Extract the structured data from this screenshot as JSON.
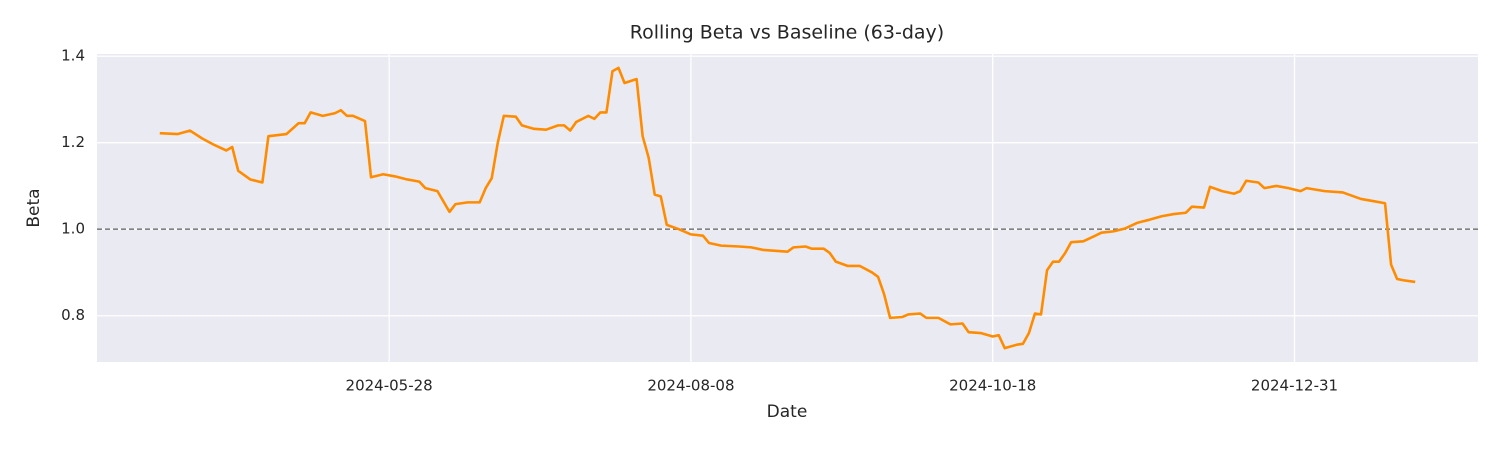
{
  "chart_data": {
    "type": "line",
    "title": "Rolling Beta vs Baseline (63-day)",
    "xlabel": "Date",
    "ylabel": "Beta",
    "x": [
      62,
      65,
      67,
      69,
      71,
      73,
      74,
      75,
      77,
      79,
      80,
      83,
      85,
      86,
      87,
      89,
      91,
      92,
      93,
      94,
      96,
      97,
      99,
      101,
      103,
      105,
      106,
      108,
      110,
      111,
      113,
      115,
      116,
      117,
      118,
      119,
      121,
      122,
      124,
      126,
      128,
      129,
      130,
      131,
      133,
      134,
      135,
      136,
      137,
      138,
      139,
      141,
      142,
      143,
      144,
      145,
      146,
      148,
      150,
      152,
      153,
      155,
      158,
      160,
      162,
      164,
      166,
      167,
      169,
      170,
      172,
      173,
      174,
      176,
      178,
      180,
      181,
      182,
      183,
      185,
      186,
      188,
      189,
      191,
      193,
      195,
      196,
      198,
      200,
      201,
      202,
      204,
      205,
      206,
      207,
      208,
      209,
      210,
      211,
      212,
      213,
      215,
      217,
      218,
      220,
      222,
      224,
      226,
      228,
      230,
      232,
      233,
      235,
      236,
      238,
      240,
      241,
      242,
      244,
      245,
      247,
      249,
      251,
      252,
      255,
      258,
      261,
      263,
      265,
      266,
      267,
      268,
      270
    ],
    "values": [
      1.222,
      1.22,
      1.228,
      1.21,
      1.195,
      1.182,
      1.19,
      1.135,
      1.115,
      1.108,
      1.215,
      1.22,
      1.245,
      1.245,
      1.27,
      1.262,
      1.268,
      1.275,
      1.262,
      1.262,
      1.25,
      1.12,
      1.127,
      1.122,
      1.115,
      1.11,
      1.095,
      1.088,
      1.04,
      1.058,
      1.062,
      1.062,
      1.095,
      1.118,
      1.2,
      1.262,
      1.26,
      1.24,
      1.232,
      1.23,
      1.24,
      1.24,
      1.228,
      1.248,
      1.262,
      1.255,
      1.27,
      1.27,
      1.365,
      1.373,
      1.338,
      1.347,
      1.215,
      1.165,
      1.08,
      1.076,
      1.01,
      1.0,
      0.988,
      0.985,
      0.968,
      0.962,
      0.96,
      0.958,
      0.952,
      0.95,
      0.948,
      0.958,
      0.96,
      0.955,
      0.955,
      0.945,
      0.925,
      0.915,
      0.915,
      0.9,
      0.89,
      0.85,
      0.795,
      0.797,
      0.803,
      0.805,
      0.795,
      0.795,
      0.78,
      0.782,
      0.762,
      0.76,
      0.752,
      0.755,
      0.725,
      0.733,
      0.735,
      0.76,
      0.805,
      0.803,
      0.905,
      0.925,
      0.925,
      0.945,
      0.97,
      0.972,
      0.985,
      0.992,
      0.995,
      1.002,
      1.015,
      1.022,
      1.03,
      1.035,
      1.038,
      1.052,
      1.05,
      1.098,
      1.088,
      1.082,
      1.088,
      1.112,
      1.108,
      1.095,
      1.1,
      1.095,
      1.088,
      1.095,
      1.088,
      1.085,
      1.07,
      1.065,
      1.06,
      0.918,
      0.885,
      0.882,
      0.878
    ],
    "color": "#ff8c00",
    "reference_line": 1,
    "reference_color": "#808080",
    "xlim": [
      51.6,
      280.4
    ],
    "xticks": [
      {
        "value": 100,
        "label": "2024-05-28"
      },
      {
        "value": 150,
        "label": "2024-08-08"
      },
      {
        "value": 200,
        "label": "2024-10-18"
      },
      {
        "value": 250,
        "label": "2024-12-31"
      }
    ],
    "ylim": [
      0.693,
      1.405
    ],
    "yticks": [
      0.8,
      {
        "value": 1,
        "label": "1.0"
      },
      1.2,
      1.4
    ],
    "grid": true
  }
}
